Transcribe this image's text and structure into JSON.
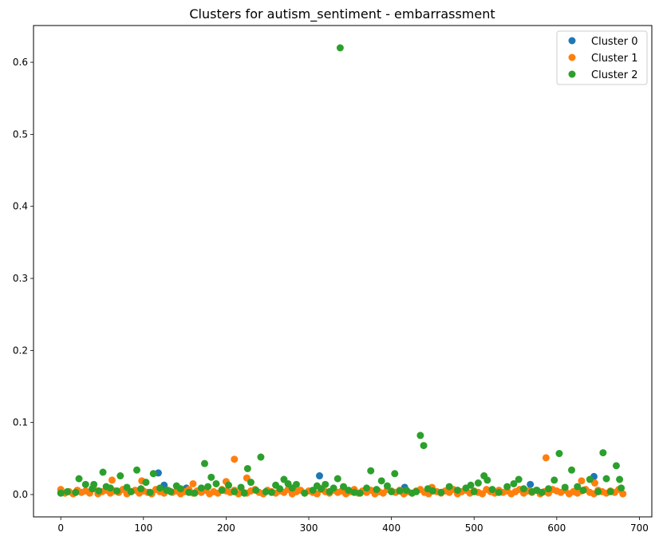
{
  "chart_data": {
    "type": "scatter",
    "title": "Clusters for autism_sentiment - embarrassment",
    "xlabel": "",
    "ylabel": "",
    "xlim": [
      -33,
      715
    ],
    "ylim": [
      -0.031,
      0.651
    ],
    "x_ticks": [
      0,
      100,
      200,
      300,
      400,
      500,
      600,
      700
    ],
    "y_ticks": [
      0.0,
      0.1,
      0.2,
      0.3,
      0.4,
      0.5,
      0.6
    ],
    "grid": false,
    "legend_position": "top-right",
    "series": [
      {
        "name": "Cluster 0",
        "color": "#1f77b4",
        "x": [
          118,
          125,
          152,
          313,
          416,
          568,
          645
        ],
        "y": [
          0.03,
          0.013,
          0.009,
          0.026,
          0.01,
          0.014,
          0.025
        ]
      },
      {
        "name": "Cluster 1",
        "color": "#ff7f0e",
        "x": [
          0,
          5,
          10,
          15,
          20,
          25,
          30,
          35,
          40,
          45,
          50,
          55,
          60,
          65,
          70,
          75,
          80,
          85,
          90,
          95,
          100,
          105,
          110,
          115,
          120,
          125,
          130,
          135,
          140,
          145,
          150,
          155,
          160,
          165,
          170,
          175,
          180,
          185,
          190,
          195,
          200,
          205,
          210,
          215,
          220,
          225,
          230,
          235,
          240,
          245,
          250,
          255,
          260,
          265,
          270,
          275,
          280,
          285,
          290,
          295,
          300,
          305,
          310,
          315,
          320,
          325,
          330,
          335,
          340,
          345,
          350,
          355,
          360,
          365,
          370,
          375,
          380,
          385,
          390,
          395,
          400,
          405,
          410,
          415,
          420,
          425,
          430,
          435,
          440,
          445,
          450,
          455,
          460,
          465,
          470,
          475,
          480,
          485,
          490,
          495,
          500,
          505,
          510,
          515,
          520,
          525,
          530,
          535,
          540,
          545,
          550,
          555,
          560,
          565,
          570,
          575,
          580,
          585,
          590,
          595,
          600,
          605,
          610,
          615,
          620,
          625,
          630,
          635,
          640,
          645,
          650,
          655,
          660,
          665,
          670,
          675,
          680,
          62,
          98,
          160,
          200,
          210,
          225,
          449,
          587,
          630,
          646
        ],
        "y": [
          0.007,
          0.002,
          0.004,
          0.001,
          0.006,
          0.003,
          0.005,
          0.002,
          0.008,
          0.001,
          0.004,
          0.006,
          0.002,
          0.005,
          0.003,
          0.007,
          0.001,
          0.004,
          0.006,
          0.002,
          0.005,
          0.003,
          0.001,
          0.007,
          0.004,
          0.002,
          0.006,
          0.003,
          0.005,
          0.001,
          0.004,
          0.007,
          0.002,
          0.005,
          0.003,
          0.006,
          0.001,
          0.004,
          0.002,
          0.007,
          0.005,
          0.003,
          0.006,
          0.001,
          0.004,
          0.002,
          0.005,
          0.007,
          0.003,
          0.001,
          0.006,
          0.004,
          0.002,
          0.005,
          0.003,
          0.007,
          0.001,
          0.004,
          0.006,
          0.002,
          0.005,
          0.003,
          0.001,
          0.007,
          0.004,
          0.002,
          0.006,
          0.003,
          0.005,
          0.001,
          0.004,
          0.007,
          0.002,
          0.005,
          0.003,
          0.006,
          0.001,
          0.004,
          0.002,
          0.007,
          0.005,
          0.003,
          0.006,
          0.001,
          0.004,
          0.002,
          0.005,
          0.007,
          0.003,
          0.001,
          0.006,
          0.004,
          0.002,
          0.005,
          0.003,
          0.007,
          0.001,
          0.004,
          0.006,
          0.002,
          0.005,
          0.003,
          0.001,
          0.007,
          0.004,
          0.002,
          0.006,
          0.003,
          0.005,
          0.001,
          0.004,
          0.007,
          0.002,
          0.005,
          0.003,
          0.006,
          0.001,
          0.004,
          0.002,
          0.007,
          0.005,
          0.003,
          0.006,
          0.001,
          0.004,
          0.002,
          0.005,
          0.007,
          0.003,
          0.001,
          0.006,
          0.004,
          0.002,
          0.005,
          0.003,
          0.007,
          0.001,
          0.02,
          0.019,
          0.015,
          0.018,
          0.049,
          0.023,
          0.01,
          0.051,
          0.019,
          0.016
        ]
      },
      {
        "name": "Cluster 2",
        "color": "#2ca02c",
        "x": [
          0,
          8,
          18,
          22,
          30,
          38,
          40,
          46,
          51,
          55,
          60,
          68,
          72,
          80,
          85,
          92,
          97,
          103,
          108,
          112,
          120,
          128,
          133,
          140,
          145,
          155,
          162,
          170,
          174,
          178,
          182,
          188,
          195,
          203,
          210,
          218,
          222,
          226,
          230,
          236,
          242,
          248,
          255,
          260,
          265,
          270,
          275,
          280,
          285,
          295,
          305,
          310,
          315,
          320,
          325,
          330,
          335,
          338,
          342,
          348,
          355,
          362,
          370,
          375,
          382,
          388,
          395,
          400,
          404,
          410,
          418,
          425,
          430,
          435,
          439,
          444,
          450,
          460,
          470,
          480,
          490,
          496,
          500,
          505,
          512,
          516,
          522,
          530,
          540,
          548,
          554,
          560,
          570,
          576,
          582,
          590,
          597,
          603,
          610,
          618,
          625,
          632,
          640,
          650,
          656,
          660,
          665,
          672,
          676,
          678
        ],
        "y": [
          0.002,
          0.004,
          0.003,
          0.022,
          0.014,
          0.008,
          0.014,
          0.005,
          0.031,
          0.011,
          0.009,
          0.005,
          0.026,
          0.01,
          0.004,
          0.034,
          0.008,
          0.017,
          0.003,
          0.029,
          0.009,
          0.006,
          0.004,
          0.012,
          0.008,
          0.003,
          0.002,
          0.009,
          0.043,
          0.011,
          0.024,
          0.015,
          0.006,
          0.013,
          0.004,
          0.01,
          0.002,
          0.036,
          0.017,
          0.006,
          0.052,
          0.004,
          0.003,
          0.013,
          0.008,
          0.021,
          0.015,
          0.009,
          0.014,
          0.002,
          0.006,
          0.012,
          0.008,
          0.014,
          0.004,
          0.009,
          0.022,
          0.62,
          0.011,
          0.006,
          0.003,
          0.002,
          0.009,
          0.033,
          0.007,
          0.019,
          0.012,
          0.004,
          0.029,
          0.005,
          0.006,
          0.002,
          0.004,
          0.082,
          0.068,
          0.008,
          0.005,
          0.003,
          0.011,
          0.006,
          0.009,
          0.013,
          0.004,
          0.016,
          0.026,
          0.02,
          0.007,
          0.003,
          0.011,
          0.015,
          0.021,
          0.008,
          0.004,
          0.006,
          0.003,
          0.008,
          0.02,
          0.057,
          0.01,
          0.034,
          0.011,
          0.006,
          0.021,
          0.004,
          0.058,
          0.022,
          0.004,
          0.04,
          0.021,
          0.009
        ]
      }
    ]
  }
}
